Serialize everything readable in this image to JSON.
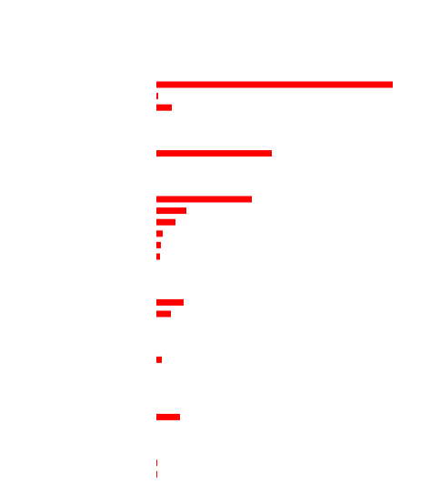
{
  "chart_data": {
    "type": "barh",
    "categories": [
      null,
      null,
      null,
      null,
      null,
      null,
      null,
      null,
      null,
      null,
      null,
      null,
      null,
      null,
      null,
      null,
      null,
      null,
      null,
      null,
      null,
      null,
      null,
      null,
      null,
      null,
      null,
      null,
      null,
      null,
      null,
      null,
      null,
      null,
      null
    ],
    "values": [
      260,
      2,
      17,
      null,
      null,
      null,
      127,
      null,
      null,
      null,
      105,
      33,
      21,
      7,
      5,
      4,
      null,
      null,
      null,
      30,
      16,
      null,
      null,
      null,
      6,
      null,
      null,
      null,
      null,
      26,
      null,
      null,
      null,
      1,
      1
    ],
    "color": "#ff0000",
    "xlim": [
      0,
      260
    ]
  }
}
